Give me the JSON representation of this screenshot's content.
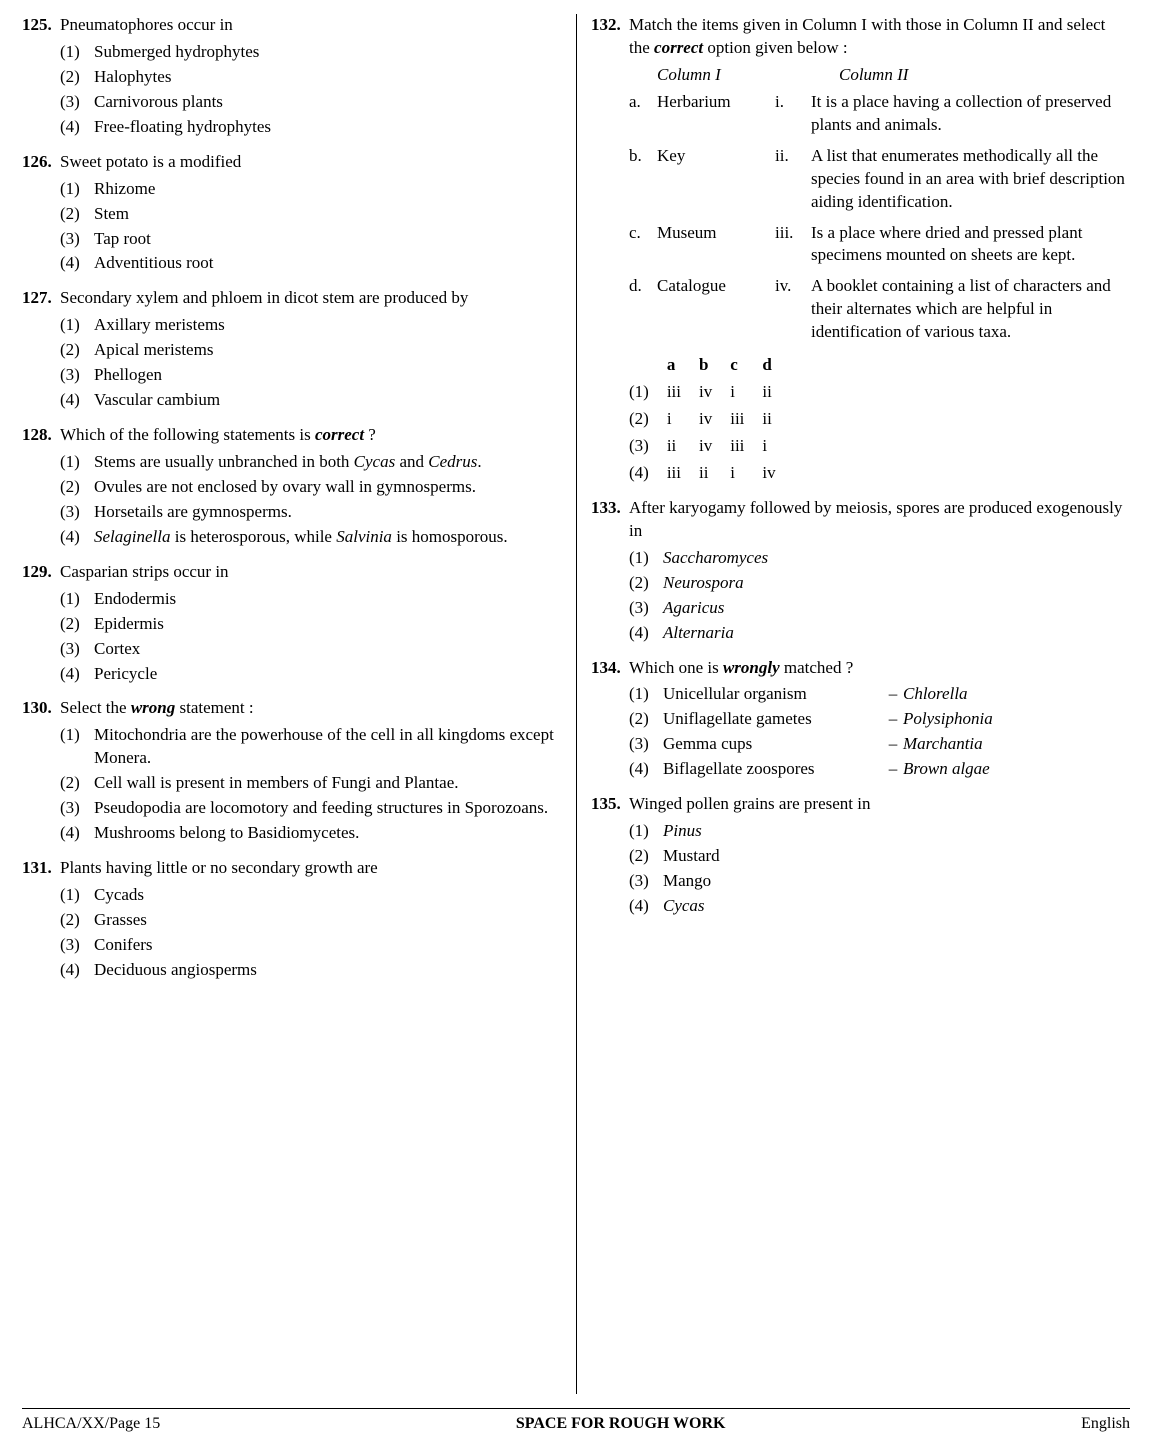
{
  "left": [
    {
      "num": "125.",
      "stem": "Pneumatophores occur in",
      "opts": [
        {
          "n": "(1)",
          "t": "Submerged hydrophytes"
        },
        {
          "n": "(2)",
          "t": "Halophytes"
        },
        {
          "n": "(3)",
          "t": "Carnivorous plants"
        },
        {
          "n": "(4)",
          "t": "Free-floating hydrophytes"
        }
      ]
    },
    {
      "num": "126.",
      "stem": "Sweet potato is a modified",
      "opts": [
        {
          "n": "(1)",
          "t": "Rhizome"
        },
        {
          "n": "(2)",
          "t": "Stem"
        },
        {
          "n": "(3)",
          "t": "Tap root"
        },
        {
          "n": "(4)",
          "t": "Adventitious root"
        }
      ]
    },
    {
      "num": "127.",
      "stem": "Secondary xylem and phloem in dicot stem are produced by",
      "opts": [
        {
          "n": "(1)",
          "t": "Axillary meristems"
        },
        {
          "n": "(2)",
          "t": "Apical meristems"
        },
        {
          "n": "(3)",
          "t": "Phellogen"
        },
        {
          "n": "(4)",
          "t": "Vascular cambium"
        }
      ]
    },
    {
      "num": "128.",
      "stem_html": "Which of the following statements is <span class='bolditalic'>correct</span> ?",
      "opts": [
        {
          "n": "(1)",
          "t_html": "Stems are usually unbranched in both <span class='italic'>Cycas</span> and <span class='italic'>Cedrus</span>."
        },
        {
          "n": "(2)",
          "t": "Ovules are not enclosed by ovary wall in gymnosperms."
        },
        {
          "n": "(3)",
          "t": "Horsetails are gymnosperms."
        },
        {
          "n": "(4)",
          "t_html": "<span class='italic'>Selaginella</span> is heterosporous, while <span class='italic'>Salvinia</span> is homosporous."
        }
      ]
    },
    {
      "num": "129.",
      "stem": "Casparian strips occur in",
      "opts": [
        {
          "n": "(1)",
          "t": "Endodermis"
        },
        {
          "n": "(2)",
          "t": "Epidermis"
        },
        {
          "n": "(3)",
          "t": "Cortex"
        },
        {
          "n": "(4)",
          "t": "Pericycle"
        }
      ]
    },
    {
      "num": "130.",
      "stem_html": "Select the <span class='bolditalic'>wrong</span> statement :",
      "opts": [
        {
          "n": "(1)",
          "t": "Mitochondria are the powerhouse of the cell in all kingdoms except Monera."
        },
        {
          "n": "(2)",
          "t": "Cell wall is present in members of Fungi and Plantae."
        },
        {
          "n": "(3)",
          "t": "Pseudopodia are locomotory and feeding structures in Sporozoans."
        },
        {
          "n": "(4)",
          "t": "Mushrooms belong to Basidiomycetes."
        }
      ]
    },
    {
      "num": "131.",
      "stem": "Plants having little or no secondary growth are",
      "opts": [
        {
          "n": "(1)",
          "t": "Cycads"
        },
        {
          "n": "(2)",
          "t": "Grasses"
        },
        {
          "n": "(3)",
          "t": "Conifers"
        },
        {
          "n": "(4)",
          "t": "Deciduous angiosperms"
        }
      ]
    }
  ],
  "q132": {
    "num": "132.",
    "stem_html": "Match the items given in Column I with those in Column II and select the <span class='bolditalic'>correct</span> option given below :",
    "head1": "Column I",
    "head2": "Column II",
    "rows": [
      {
        "l": "a.",
        "c1": "Herbarium",
        "n": "i.",
        "c2": "It is a place having a collection of preserved plants and animals."
      },
      {
        "l": "b.",
        "c1": "Key",
        "n": "ii.",
        "c2": "A list that enumerates methodically all the species found in an area with brief description aiding identification."
      },
      {
        "l": "c.",
        "c1": "Museum",
        "n": "iii.",
        "c2": "Is a place where dried and pressed plant specimens mounted on sheets are kept."
      },
      {
        "l": "d.",
        "c1": "Catalogue",
        "n": "iv.",
        "c2": "A booklet containing a list of characters and their alternates which are helpful in identification of various taxa."
      }
    ],
    "grid": {
      "head": [
        "",
        "a",
        "b",
        "c",
        "d"
      ],
      "rows": [
        [
          "(1)",
          "iii",
          "iv",
          "i",
          "ii"
        ],
        [
          "(2)",
          "i",
          "iv",
          "iii",
          "ii"
        ],
        [
          "(3)",
          "ii",
          "iv",
          "iii",
          "i"
        ],
        [
          "(4)",
          "iii",
          "ii",
          "i",
          "iv"
        ]
      ]
    }
  },
  "q133": {
    "num": "133.",
    "stem": "After karyogamy followed by meiosis, spores are produced exogenously in",
    "opts": [
      {
        "n": "(1)",
        "t": "Saccharomyces"
      },
      {
        "n": "(2)",
        "t": "Neurospora"
      },
      {
        "n": "(3)",
        "t": "Agaricus"
      },
      {
        "n": "(4)",
        "t": "Alternaria"
      }
    ]
  },
  "q134": {
    "num": "134.",
    "stem_html": "Which one is <span class='bolditalic'>wrongly</span> matched ?",
    "pairs": [
      {
        "n": "(1)",
        "a": "Unicellular organism",
        "b": "Chlorella"
      },
      {
        "n": "(2)",
        "a": "Uniflagellate gametes",
        "b": "Polysiphonia"
      },
      {
        "n": "(3)",
        "a": "Gemma cups",
        "b": "Marchantia"
      },
      {
        "n": "(4)",
        "a": "Biflagellate zoospores",
        "b": "Brown algae"
      }
    ]
  },
  "q135": {
    "num": "135.",
    "stem": "Winged pollen grains are present in",
    "opts": [
      {
        "n": "(1)",
        "t": "Pinus"
      },
      {
        "n": "(2)",
        "t": "Mustard"
      },
      {
        "n": "(3)",
        "t": "Mango"
      },
      {
        "n": "(4)",
        "t": "Cycas"
      }
    ]
  },
  "footer": {
    "left": "ALHCA/XX/Page 15",
    "center": "SPACE FOR ROUGH WORK",
    "right": "English"
  }
}
